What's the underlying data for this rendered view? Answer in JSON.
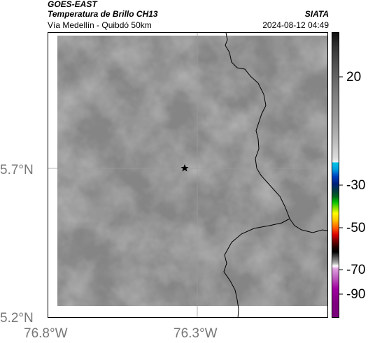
{
  "header": {
    "satellite": "GOES-EAST",
    "product": "Temperatura de Brillo CH13",
    "source": "SIATA",
    "region": "Vía Medellín - Quibdó 50km",
    "timestamp": "2024-08-12 04:49"
  },
  "map": {
    "y_labels": [
      "5.7°N",
      "5.2°N"
    ],
    "x_labels": [
      "76.8°W",
      "76.3°W"
    ],
    "marker": "star"
  },
  "colorbar": {
    "ticks": [
      "20",
      "-30",
      "-50",
      "-70",
      "-90"
    ]
  },
  "colors": {
    "field_gray": "#8a8a8a",
    "boundary_line": "#000000"
  }
}
